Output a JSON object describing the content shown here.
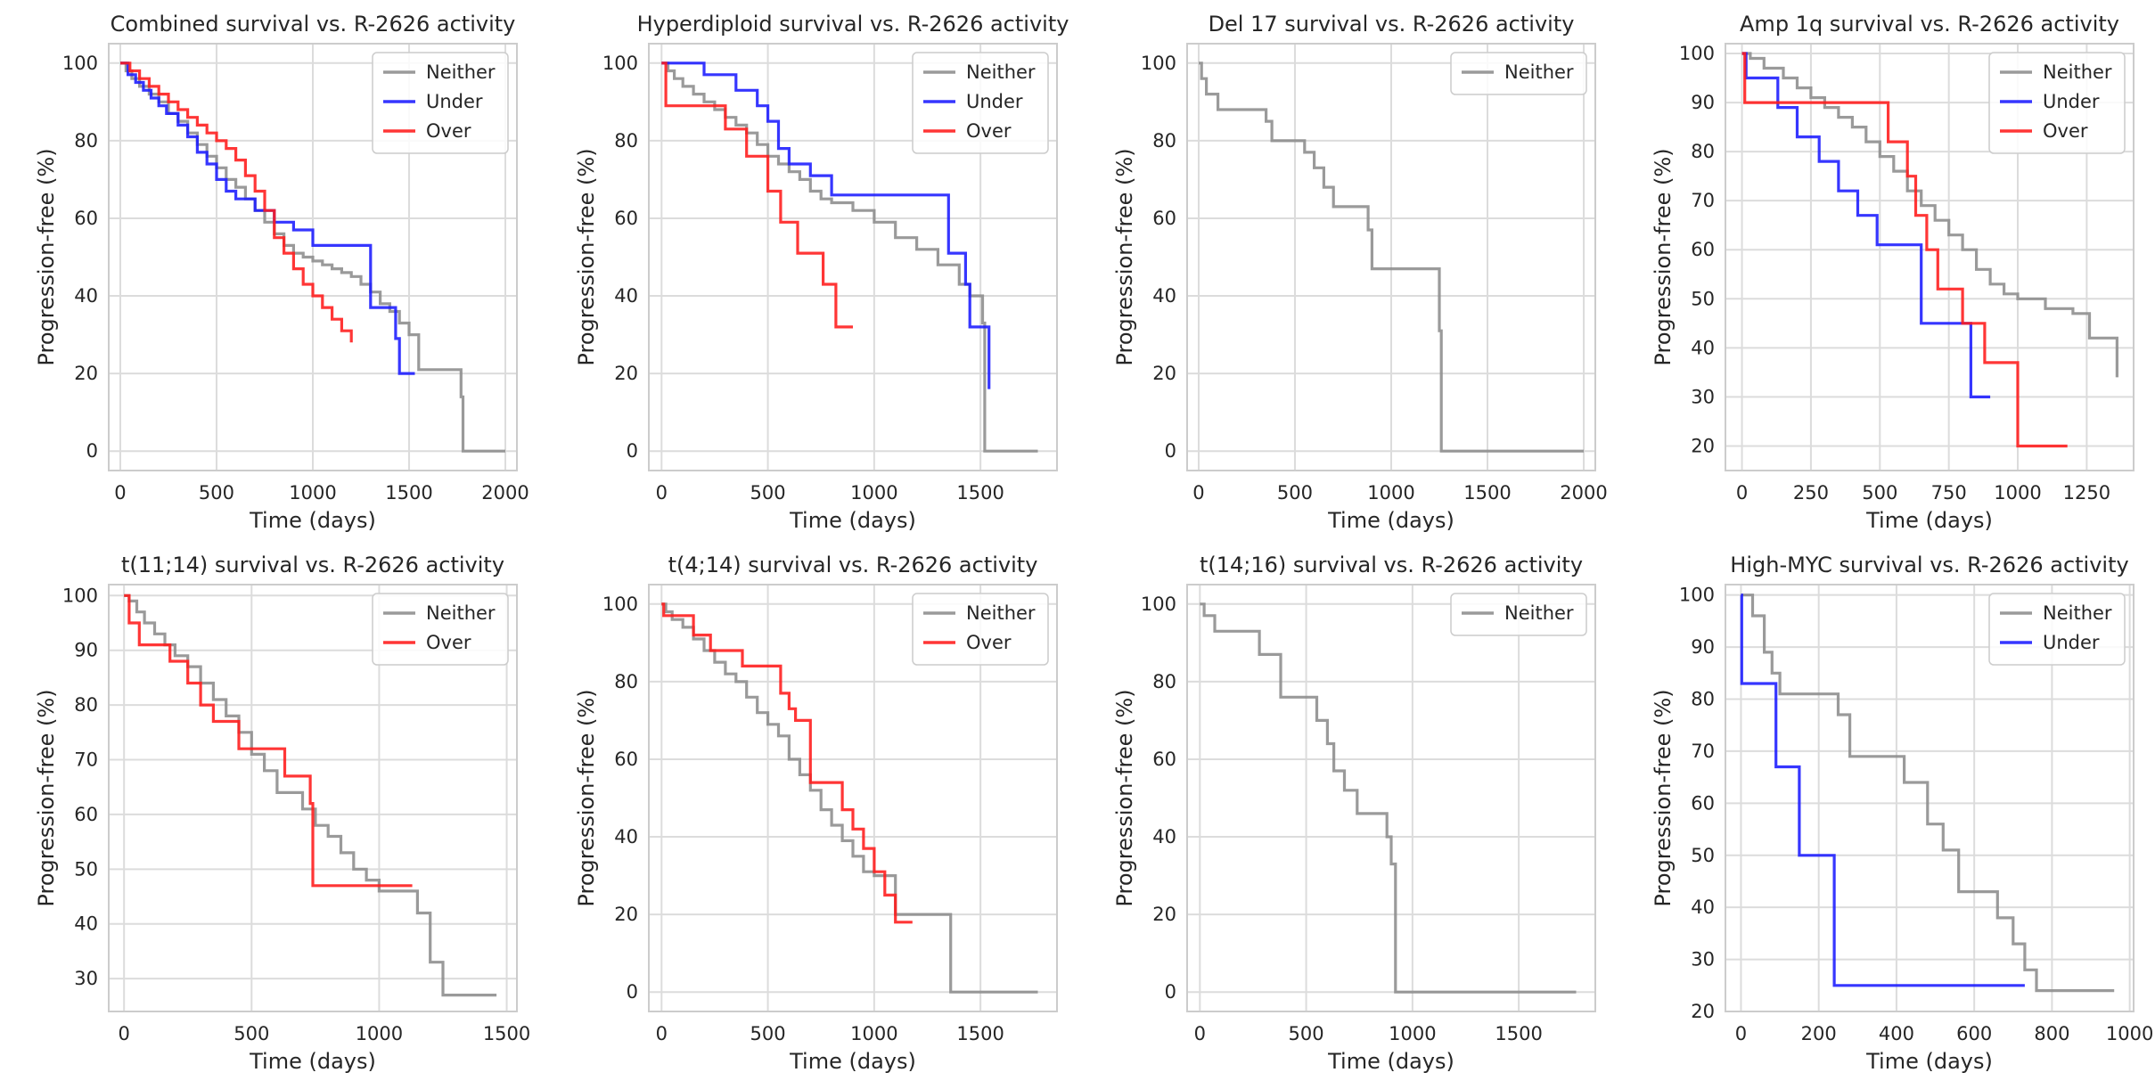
{
  "figure": {
    "description_free": true
  },
  "colors": {
    "Neither": "#8c8c8c",
    "Under": "#1a1aff",
    "Over": "#ff1a1a"
  },
  "chart_data": [
    {
      "type": "line",
      "step": true,
      "title": "Combined survival vs. R-2626 activity",
      "xlabel": "Time (days)",
      "ylabel": "Progression-free (%)",
      "xlim": [
        -60,
        2060
      ],
      "ylim": [
        -5,
        105
      ],
      "xticks": [
        0,
        500,
        1000,
        1500,
        2000
      ],
      "yticks": [
        0,
        20,
        40,
        60,
        80,
        100
      ],
      "legend": [
        "Neither",
        "Under",
        "Over"
      ],
      "series": [
        {
          "name": "Neither",
          "x": [
            0,
            30,
            60,
            100,
            150,
            200,
            250,
            300,
            350,
            400,
            450,
            500,
            550,
            600,
            650,
            700,
            750,
            800,
            850,
            900,
            950,
            1000,
            1050,
            1100,
            1150,
            1200,
            1250,
            1300,
            1350,
            1400,
            1450,
            1500,
            1550,
            1600,
            1700,
            1770,
            1780,
            2000
          ],
          "y": [
            100,
            98,
            96,
            94,
            92,
            90,
            87,
            85,
            82,
            79,
            76,
            73,
            70,
            68,
            65,
            62,
            59,
            56,
            53,
            51,
            50,
            49,
            48,
            47,
            46,
            45,
            43,
            41,
            38,
            36,
            33,
            30,
            21,
            21,
            21,
            14,
            0,
            0
          ]
        },
        {
          "name": "Under",
          "x": [
            0,
            40,
            80,
            120,
            160,
            200,
            240,
            300,
            350,
            400,
            450,
            500,
            550,
            600,
            700,
            800,
            900,
            1000,
            1150,
            1300,
            1400,
            1430,
            1450,
            1530
          ],
          "y": [
            100,
            97,
            95,
            93,
            91,
            89,
            87,
            84,
            81,
            77,
            74,
            70,
            67,
            65,
            62,
            59,
            57,
            53,
            53,
            37,
            37,
            29,
            20,
            20
          ]
        },
        {
          "name": "Over",
          "x": [
            0,
            50,
            100,
            150,
            200,
            250,
            300,
            350,
            400,
            450,
            500,
            550,
            600,
            650,
            700,
            750,
            800,
            850,
            900,
            950,
            1000,
            1050,
            1100,
            1150,
            1200
          ],
          "y": [
            100,
            98,
            96,
            94,
            92,
            90,
            88,
            86,
            84,
            82,
            80,
            78,
            75,
            71,
            67,
            62,
            55,
            51,
            47,
            43,
            40,
            37,
            34,
            31,
            28
          ]
        }
      ]
    },
    {
      "type": "line",
      "step": true,
      "title": "Hyperdiploid survival vs. R-2626 activity",
      "xlabel": "Time (days)",
      "ylabel": "Progression-free (%)",
      "xlim": [
        -60,
        1860
      ],
      "ylim": [
        -5,
        105
      ],
      "xticks": [
        0,
        500,
        1000,
        1500
      ],
      "yticks": [
        0,
        20,
        40,
        60,
        80,
        100
      ],
      "legend": [
        "Neither",
        "Under",
        "Over"
      ],
      "series": [
        {
          "name": "Neither",
          "x": [
            0,
            30,
            60,
            100,
            150,
            200,
            250,
            300,
            350,
            400,
            450,
            500,
            550,
            600,
            650,
            700,
            750,
            800,
            900,
            1000,
            1100,
            1200,
            1300,
            1400,
            1450,
            1510,
            1520,
            1770
          ],
          "y": [
            100,
            98,
            96,
            94,
            92,
            90,
            88,
            86,
            84,
            82,
            79,
            76,
            74,
            72,
            70,
            67,
            65,
            64,
            62,
            59,
            55,
            52,
            48,
            43,
            40,
            33,
            0,
            0
          ]
        },
        {
          "name": "Under",
          "x": [
            0,
            200,
            350,
            450,
            500,
            550,
            600,
            700,
            800,
            1200,
            1350,
            1430,
            1450,
            1540
          ],
          "y": [
            100,
            97,
            93,
            89,
            85,
            78,
            74,
            71,
            66,
            66,
            51,
            43,
            32,
            16
          ]
        },
        {
          "name": "Over",
          "x": [
            0,
            20,
            100,
            300,
            400,
            500,
            560,
            640,
            760,
            820,
            900
          ],
          "y": [
            100,
            89,
            89,
            83,
            76,
            67,
            59,
            51,
            43,
            32,
            32
          ]
        }
      ]
    },
    {
      "type": "line",
      "step": true,
      "title": "Del 17 survival vs. R-2626 activity",
      "xlabel": "Time (days)",
      "ylabel": "Progression-free (%)",
      "xlim": [
        -60,
        2060
      ],
      "ylim": [
        -5,
        105
      ],
      "xticks": [
        0,
        500,
        1000,
        1500,
        2000
      ],
      "yticks": [
        0,
        20,
        40,
        60,
        80,
        100
      ],
      "legend": [
        "Neither"
      ],
      "series": [
        {
          "name": "Neither",
          "x": [
            0,
            15,
            40,
            100,
            350,
            380,
            550,
            600,
            650,
            700,
            880,
            900,
            1250,
            1260,
            2000
          ],
          "y": [
            100,
            96,
            92,
            88,
            85,
            80,
            77,
            73,
            68,
            63,
            57,
            47,
            31,
            0,
            0
          ]
        }
      ]
    },
    {
      "type": "line",
      "step": true,
      "title": "Amp 1q survival vs. R-2626 activity",
      "xlabel": "Time (days)",
      "ylabel": "Progression-free (%)",
      "xlim": [
        -60,
        1420
      ],
      "ylim": [
        15,
        102
      ],
      "xticks": [
        0,
        250,
        500,
        750,
        1000,
        1250
      ],
      "yticks": [
        20,
        30,
        40,
        50,
        60,
        70,
        80,
        90,
        100
      ],
      "legend": [
        "Neither",
        "Under",
        "Over"
      ],
      "series": [
        {
          "name": "Neither",
          "x": [
            0,
            30,
            80,
            150,
            200,
            250,
            300,
            350,
            400,
            450,
            500,
            550,
            600,
            650,
            700,
            750,
            800,
            850,
            900,
            950,
            1000,
            1100,
            1200,
            1250,
            1260,
            1360
          ],
          "y": [
            100,
            99,
            97,
            95,
            93,
            91,
            89,
            87,
            85,
            82,
            79,
            76,
            72,
            69,
            66,
            63,
            60,
            56,
            53,
            51,
            50,
            48,
            47,
            47,
            42,
            34
          ]
        },
        {
          "name": "Under",
          "x": [
            0,
            15,
            50,
            130,
            200,
            280,
            350,
            420,
            490,
            650,
            800,
            830,
            900
          ],
          "y": [
            100,
            95,
            95,
            89,
            83,
            78,
            72,
            67,
            61,
            45,
            45,
            30,
            30
          ]
        },
        {
          "name": "Over",
          "x": [
            0,
            10,
            80,
            350,
            530,
            600,
            630,
            670,
            710,
            800,
            880,
            1000,
            1180
          ],
          "y": [
            100,
            90,
            90,
            90,
            82,
            75,
            67,
            60,
            52,
            45,
            37,
            20,
            20
          ]
        }
      ]
    },
    {
      "type": "line",
      "step": true,
      "title": "t(11;14) survival vs. R-2626 activity",
      "xlabel": "Time (days)",
      "ylabel": "Progression-free (%)",
      "xlim": [
        -60,
        1540
      ],
      "ylim": [
        24,
        102
      ],
      "xticks": [
        0,
        500,
        1000,
        1500
      ],
      "yticks": [
        30,
        40,
        50,
        60,
        70,
        80,
        90,
        100
      ],
      "legend": [
        "Neither",
        "Over"
      ],
      "series": [
        {
          "name": "Neither",
          "x": [
            0,
            20,
            50,
            80,
            120,
            160,
            200,
            250,
            300,
            350,
            400,
            450,
            500,
            550,
            600,
            700,
            750,
            800,
            850,
            900,
            950,
            1000,
            1050,
            1150,
            1200,
            1250,
            1460
          ],
          "y": [
            100,
            99,
            97,
            95,
            93,
            91,
            89,
            87,
            84,
            81,
            78,
            75,
            71,
            68,
            64,
            61,
            58,
            56,
            53,
            50,
            48,
            46,
            46,
            42,
            33,
            27,
            27
          ]
        },
        {
          "name": "Over",
          "x": [
            0,
            20,
            60,
            180,
            250,
            300,
            350,
            450,
            630,
            730,
            740,
            1130
          ],
          "y": [
            100,
            95,
            91,
            88,
            84,
            80,
            77,
            72,
            67,
            62,
            47,
            47
          ]
        }
      ]
    },
    {
      "type": "line",
      "step": true,
      "title": "t(4;14) survival vs. R-2626 activity",
      "xlabel": "Time (days)",
      "ylabel": "Progression-free (%)",
      "xlim": [
        -60,
        1860
      ],
      "ylim": [
        -5,
        105
      ],
      "xticks": [
        0,
        500,
        1000,
        1500
      ],
      "yticks": [
        0,
        20,
        40,
        60,
        80,
        100
      ],
      "legend": [
        "Neither",
        "Over"
      ],
      "series": [
        {
          "name": "Neither",
          "x": [
            0,
            20,
            50,
            100,
            150,
            200,
            250,
            300,
            350,
            400,
            450,
            500,
            550,
            600,
            650,
            700,
            750,
            800,
            850,
            900,
            950,
            1000,
            1100,
            1350,
            1360,
            1770
          ],
          "y": [
            100,
            98,
            96,
            94,
            91,
            88,
            85,
            82,
            80,
            76,
            72,
            69,
            66,
            60,
            56,
            52,
            47,
            43,
            39,
            35,
            31,
            30,
            20,
            20,
            0,
            0
          ]
        },
        {
          "name": "Over",
          "x": [
            0,
            10,
            150,
            230,
            380,
            560,
            600,
            630,
            700,
            850,
            900,
            950,
            1000,
            1050,
            1100,
            1180
          ],
          "y": [
            100,
            97,
            92,
            88,
            84,
            77,
            73,
            70,
            54,
            47,
            42,
            37,
            31,
            25,
            18,
            18
          ]
        }
      ]
    },
    {
      "type": "line",
      "step": true,
      "title": "t(14;16) survival vs. R-2626 activity",
      "xlabel": "Time (days)",
      "ylabel": "Progression-free (%)",
      "xlim": [
        -60,
        1860
      ],
      "ylim": [
        -5,
        105
      ],
      "xticks": [
        0,
        500,
        1000,
        1500
      ],
      "yticks": [
        0,
        20,
        40,
        60,
        80,
        100
      ],
      "legend": [
        "Neither"
      ],
      "series": [
        {
          "name": "Neither",
          "x": [
            0,
            20,
            70,
            280,
            380,
            550,
            600,
            630,
            680,
            740,
            880,
            900,
            920,
            1770
          ],
          "y": [
            100,
            97,
            93,
            87,
            76,
            70,
            64,
            57,
            52,
            46,
            40,
            33,
            0,
            0
          ]
        }
      ]
    },
    {
      "type": "line",
      "step": true,
      "title": "High-MYC survival vs. R-2626 activity",
      "xlabel": "Time (days)",
      "ylabel": "Progression-free (%)",
      "xlim": [
        -40,
        1010
      ],
      "ylim": [
        20,
        102
      ],
      "xticks": [
        0,
        200,
        400,
        600,
        800,
        1000
      ],
      "yticks": [
        20,
        30,
        40,
        50,
        60,
        70,
        80,
        90,
        100
      ],
      "legend": [
        "Neither",
        "Under"
      ],
      "series": [
        {
          "name": "Neither",
          "x": [
            0,
            30,
            60,
            80,
            100,
            150,
            250,
            280,
            420,
            480,
            520,
            560,
            660,
            700,
            730,
            760,
            790,
            960
          ],
          "y": [
            100,
            96,
            89,
            85,
            81,
            81,
            77,
            69,
            64,
            56,
            51,
            43,
            38,
            33,
            28,
            24,
            24,
            24
          ]
        },
        {
          "name": "Under",
          "x": [
            0,
            2,
            90,
            150,
            240,
            730
          ],
          "y": [
            100,
            83,
            67,
            50,
            25,
            25
          ]
        }
      ]
    }
  ]
}
